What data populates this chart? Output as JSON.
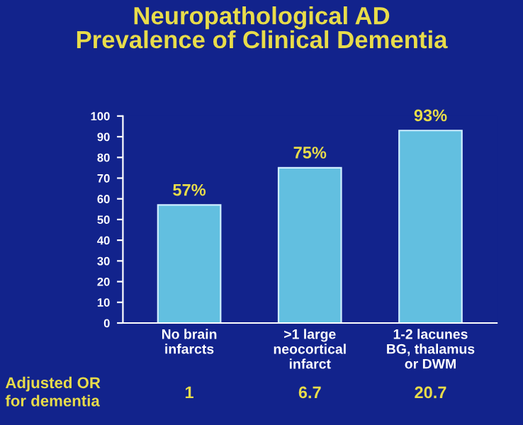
{
  "chart_data": {
    "type": "bar",
    "title": "Neuropathological AD\nPrevalence of Clinical Dementia",
    "categories": [
      "No brain\ninfarcts",
      ">1 large\nneocortical\ninfarct",
      "1-2 lacunes\nBG, thalamus\nor DWM"
    ],
    "values": [
      57,
      75,
      93
    ],
    "color": "#62bfe0",
    "value_labels": [
      "57%",
      "75%",
      "93%"
    ],
    "ylim": [
      0,
      100
    ],
    "yticks": [
      0,
      10,
      20,
      30,
      40,
      50,
      60,
      70,
      80,
      90,
      100
    ],
    "grid": false,
    "annotations": [
      "Adjusted OR\nfor dementia",
      "1",
      "6.7",
      "20.7"
    ]
  }
}
